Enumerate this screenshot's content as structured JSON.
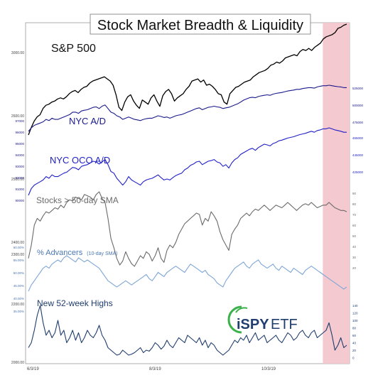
{
  "chart_data": {
    "type": "line",
    "title": "Stock Market Breadth & Liquidity",
    "x_tick_labels": [
      "6/3/19",
      "8/3/19",
      "10/3/19"
    ],
    "shaded_region": {
      "from": 0.925,
      "to": 1.0,
      "color": "#f3c6cc"
    },
    "left_axis_labels": [
      "3000.00",
      "2600.00",
      "2500.00",
      "2400.00",
      "2300.00",
      "2200.00",
      "2000.00"
    ],
    "left_axis_values": [
      3000,
      2600,
      2500,
      2400,
      2300,
      2200,
      2000
    ],
    "left_small_labels": {
      "nyc_ad": [
        "97000",
        "96000",
        "95000",
        "94000",
        "93000",
        "92000",
        "91000",
        "90000"
      ],
      "pct_adv": [
        "60.00%",
        "55.00%",
        "50.00%",
        "45.00%",
        "40.00%",
        "35.00%"
      ]
    },
    "right_axis_labels": {
      "nyc_ad": [
        "525000",
        "500000",
        "475000"
      ],
      "nyc_oco": [
        "465000",
        "445000",
        "425000"
      ],
      "sma50": [
        "90",
        "80",
        "70",
        "60",
        "50",
        "40",
        "30",
        "20"
      ],
      "highs": [
        "140",
        "120",
        "100",
        "80",
        "60",
        "40",
        "20",
        "0"
      ]
    },
    "series": [
      {
        "name": "S&P 500",
        "color": "#000000",
        "values": [
          2744,
          2780,
          2810,
          2830,
          2840,
          2870,
          2885,
          2890,
          2900,
          2905,
          2915,
          2920,
          2915,
          2925,
          2940,
          2950,
          2955,
          2945,
          2960,
          2970,
          2975,
          2990,
          3000,
          3005,
          3010,
          3015,
          3020,
          3010,
          3000,
          2980,
          2935,
          2875,
          2860,
          2900,
          2925,
          2935,
          2905,
          2885,
          2870,
          2910,
          2900,
          2890,
          2920,
          2935,
          2905,
          2880,
          2930,
          2950,
          2960,
          2940,
          2905,
          2920,
          2930,
          2940,
          2960,
          2975,
          3000,
          3005,
          3010,
          2995,
          3005,
          2980,
          2985,
          2975,
          2960,
          2940,
          2935,
          2900,
          2890,
          2940,
          2955,
          2970,
          2975,
          2985,
          2995,
          3000,
          3005,
          3020,
          3030,
          3040,
          3045,
          3050,
          3060,
          3075,
          3080,
          3090,
          3085,
          3095,
          3110,
          3115,
          3120,
          3125,
          3120,
          3140,
          3150,
          3145,
          3155,
          3145,
          3160,
          3170,
          3180,
          3200,
          3210,
          3215,
          3220,
          3230,
          3250,
          3255,
          3265,
          3270
        ]
      },
      {
        "name": "NYC A/D",
        "color": "#1a1a8c",
        "values": [
          330,
          345,
          355,
          360,
          365,
          370,
          380,
          375,
          385,
          380,
          380,
          385,
          390,
          395,
          400,
          410,
          410,
          405,
          415,
          418,
          420,
          425,
          430,
          432,
          425,
          435,
          440,
          425,
          410,
          405,
          395,
          390,
          380,
          385,
          390,
          385,
          380,
          378,
          375,
          380,
          383,
          385,
          385,
          390,
          395,
          392,
          388,
          390,
          385,
          390,
          395,
          398,
          400,
          405,
          410,
          415,
          420,
          425,
          428,
          420,
          425,
          430,
          432,
          435,
          432,
          430,
          425,
          428,
          430,
          435,
          440,
          445,
          452,
          460,
          465,
          470,
          472,
          470,
          475,
          478,
          480,
          482,
          480,
          485,
          488,
          490,
          492,
          495,
          498,
          500,
          502,
          505,
          505,
          508,
          510,
          512,
          512,
          510,
          515,
          518,
          520,
          520,
          522,
          520,
          518,
          516,
          515,
          512,
          512
        ]
      },
      {
        "name": "NYC OCO A/D",
        "color": "#2020c8",
        "values": [
          300,
          320,
          330,
          335,
          340,
          345,
          355,
          350,
          360,
          355,
          355,
          360,
          365,
          368,
          375,
          382,
          380,
          375,
          385,
          388,
          390,
          395,
          400,
          398,
          392,
          398,
          405,
          390,
          370,
          365,
          350,
          340,
          330,
          340,
          355,
          345,
          340,
          335,
          330,
          340,
          345,
          348,
          350,
          355,
          360,
          352,
          345,
          348,
          345,
          352,
          358,
          362,
          365,
          375,
          380,
          388,
          392,
          398,
          400,
          390,
          395,
          400,
          402,
          405,
          398,
          395,
          385,
          390,
          380,
          395,
          405,
          410,
          420,
          425,
          430,
          435,
          438,
          432,
          440,
          445,
          450,
          448,
          445,
          452,
          455,
          460,
          462,
          465,
          468,
          470,
          472,
          475,
          478,
          480,
          482,
          485,
          488,
          485,
          490,
          492,
          495,
          495,
          498,
          495,
          492,
          490,
          488,
          485,
          485
        ]
      },
      {
        "name": "Stocks > 50-day SMA",
        "color": "#6b6b6b",
        "values": [
          30,
          40,
          55,
          60,
          58,
          62,
          65,
          64,
          66,
          68,
          67,
          70,
          68,
          72,
          74,
          73,
          76,
          75,
          74,
          78,
          77,
          76,
          74,
          78,
          80,
          75,
          72,
          60,
          45,
          38,
          30,
          25,
          28,
          35,
          30,
          26,
          24,
          28,
          32,
          30,
          35,
          33,
          28,
          32,
          38,
          30,
          27,
          36,
          40,
          38,
          42,
          48,
          52,
          56,
          58,
          60,
          62,
          64,
          63,
          55,
          60,
          58,
          65,
          62,
          58,
          50,
          44,
          40,
          36,
          48,
          52,
          55,
          60,
          62,
          64,
          62,
          65,
          67,
          66,
          68,
          70,
          68,
          66,
          68,
          70,
          69,
          68,
          70,
          72,
          70,
          68,
          66,
          68,
          70,
          71,
          70,
          72,
          70,
          68,
          69,
          70,
          70,
          72,
          70,
          68,
          67,
          66,
          66,
          65
        ]
      },
      {
        "name": "% Advancers",
        "name_suffix": "(10-day SMA)",
        "color": "#7ea6d6",
        "values": [
          41,
          44,
          46,
          48,
          50,
          52,
          53,
          52,
          54,
          55,
          56,
          55,
          57,
          58,
          57,
          56,
          55,
          57,
          56,
          55,
          56,
          55,
          54,
          53,
          52,
          50,
          48,
          46,
          45,
          44,
          43,
          44,
          45,
          46,
          45,
          44,
          45,
          46,
          47,
          48,
          49,
          47,
          46,
          48,
          50,
          49,
          48,
          50,
          51,
          52,
          53,
          52,
          51,
          50,
          52,
          54,
          53,
          52,
          51,
          50,
          51,
          49,
          48,
          47,
          45,
          44,
          43,
          46,
          48,
          50,
          52,
          53,
          54,
          55,
          53,
          52,
          54,
          55,
          56,
          54,
          53,
          52,
          53,
          54,
          52,
          51,
          53,
          52,
          51,
          50,
          52,
          51,
          50,
          49,
          51,
          52,
          53,
          52,
          51,
          50,
          49,
          48,
          47,
          46,
          45,
          44,
          43,
          42,
          43
        ]
      },
      {
        "name": "New 52-week Highs",
        "color": "#1f3d6e",
        "values": [
          25,
          35,
          60,
          90,
          110,
          75,
          50,
          60,
          45,
          55,
          80,
          50,
          60,
          35,
          45,
          60,
          40,
          55,
          35,
          45,
          60,
          50,
          45,
          55,
          70,
          50,
          40,
          25,
          20,
          15,
          10,
          12,
          20,
          15,
          10,
          12,
          15,
          20,
          25,
          15,
          20,
          18,
          25,
          35,
          30,
          22,
          28,
          40,
          30,
          25,
          35,
          45,
          40,
          35,
          50,
          45,
          40,
          35,
          45,
          30,
          40,
          25,
          35,
          30,
          20,
          15,
          10,
          15,
          20,
          30,
          40,
          35,
          45,
          40,
          50,
          35,
          45,
          55,
          40,
          45,
          50,
          35,
          40,
          45,
          50,
          40,
          35,
          45,
          55,
          50,
          40,
          45,
          55,
          60,
          50,
          45,
          55,
          60,
          45,
          50,
          55,
          60,
          75,
          50,
          20,
          30,
          45,
          25,
          30
        ]
      }
    ],
    "legend": "none"
  },
  "logo": {
    "text_primary": "iSPY",
    "text_secondary": "ETF",
    "color_primary": "#1f3d6e",
    "color_accent": "#3ab14a"
  },
  "colors": {
    "frame": "#9a9a9a",
    "shade": "#f3c6cc"
  }
}
